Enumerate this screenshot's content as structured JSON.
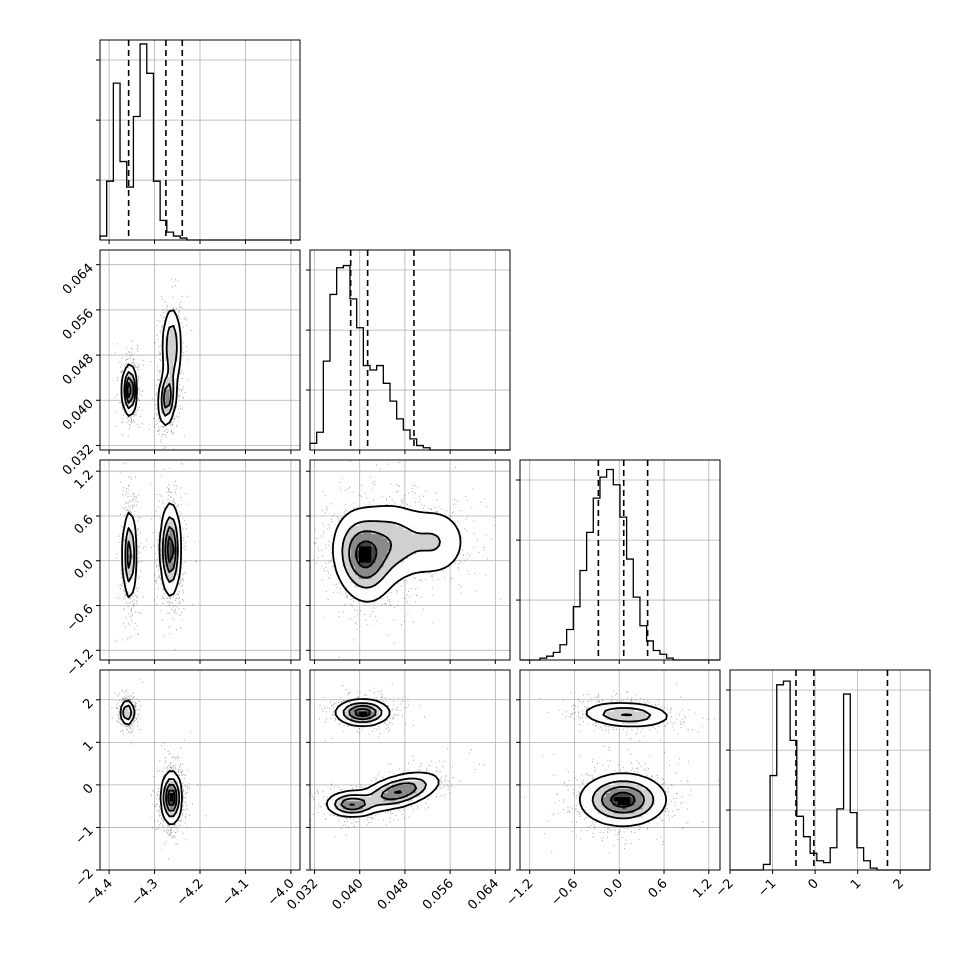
{
  "figure": {
    "type": "corner-plot",
    "panel_count": 10
  },
  "style": {
    "line_color": "#000000",
    "grid_color": "#b0b0b0",
    "scatter_color": "#000000",
    "background": "#ffffff"
  },
  "chart_data": {
    "type": "corner",
    "parameters": [
      {
        "ticks": [
          -4.4,
          -4.3,
          -4.2,
          -4.1,
          -4.0
        ],
        "tick_labels": [
          "−4.4",
          "−4.3",
          "−4.2",
          "−4.1",
          "−4.0"
        ],
        "range": [
          -4.42,
          -3.98
        ],
        "quantiles": [
          -4.357,
          -4.275,
          -4.239
        ]
      },
      {
        "ticks": [
          0.032,
          0.04,
          0.048,
          0.056,
          0.064
        ],
        "tick_labels": [
          "0.032",
          "0.040",
          "0.048",
          "0.056",
          "0.064"
        ],
        "range": [
          0.0312,
          0.0666
        ],
        "quantiles": [
          0.0384,
          0.0414,
          0.0496
        ]
      },
      {
        "ticks": [
          -1.2,
          -0.6,
          0.0,
          0.6,
          1.2
        ],
        "tick_labels": [
          "−1.2",
          "−0.6",
          "0.0",
          "0.6",
          "1.2"
        ],
        "range": [
          -1.33,
          1.35
        ],
        "quantiles": [
          -0.28,
          0.06,
          0.38
        ]
      },
      {
        "ticks": [
          -2,
          -1,
          0,
          1,
          2
        ],
        "tick_labels": [
          "−2",
          "−1",
          "0",
          "1",
          "2"
        ],
        "range": [
          -2.0,
          2.7
        ],
        "quantiles": [
          -0.45,
          -0.03,
          1.7
        ]
      }
    ],
    "histograms": [
      {
        "param": 0,
        "bin_edges_start": -4.42,
        "bin_width": 0.0147,
        "counts": [
          2,
          30,
          80,
          40,
          27,
          63,
          100,
          85,
          30,
          10,
          4,
          2,
          1,
          0,
          0,
          0,
          0,
          0,
          0,
          0,
          0,
          0,
          0,
          0,
          0,
          0,
          0,
          0,
          0,
          0
        ],
        "ylim": [
          0,
          102
        ]
      },
      {
        "param": 1,
        "bin_edges_start": 0.0312,
        "bin_width": 0.00118,
        "counts": [
          3,
          8,
          40,
          70,
          82,
          83,
          68,
          55,
          38,
          36,
          38,
          30,
          22,
          14,
          9,
          5,
          2,
          1,
          0,
          0,
          0,
          0,
          0,
          0,
          0,
          0,
          0,
          0,
          0,
          0
        ],
        "ylim": [
          0,
          90
        ]
      },
      {
        "param": 2,
        "bin_edges_start": -1.33,
        "bin_width": 0.0893,
        "counts": [
          0,
          0,
          0,
          1,
          2,
          4,
          8,
          16,
          28,
          47,
          67,
          85,
          96,
          100,
          92,
          75,
          53,
          33,
          18,
          10,
          5,
          3,
          1,
          0,
          0,
          0,
          0,
          0,
          0,
          0
        ],
        "ylim": [
          0,
          105
        ]
      },
      {
        "param": 3,
        "bin_edges_start": -2.0,
        "bin_width": 0.157,
        "counts": [
          0,
          0,
          0,
          0,
          0,
          3,
          51,
          100,
          102,
          70,
          29,
          18,
          9,
          5,
          4,
          12,
          33,
          95,
          31,
          12,
          5,
          1,
          0,
          0,
          0,
          0,
          0,
          0,
          0,
          0
        ],
        "ylim": [
          0,
          108
        ]
      }
    ],
    "pairs": [
      {
        "x_param": 0,
        "y_param": 1,
        "modes": [
          {
            "cx": -4.355,
            "cy": 0.0418,
            "sx": 0.0077,
            "sy": 0.0022,
            "rho": 0.0,
            "weight": 0.42
          },
          {
            "cx": -4.272,
            "cy": 0.0405,
            "sx": 0.0095,
            "sy": 0.0025,
            "rho": 0.2,
            "weight": 0.33
          },
          {
            "cx": -4.262,
            "cy": 0.0495,
            "sx": 0.0105,
            "sy": 0.0036,
            "rho": 0.0,
            "weight": 0.25
          }
        ]
      },
      {
        "x_param": 0,
        "y_param": 2,
        "modes": [
          {
            "cx": -4.355,
            "cy": 0.08,
            "sx": 0.0077,
            "sy": 0.3,
            "rho": 0.0,
            "weight": 0.42
          },
          {
            "cx": -4.265,
            "cy": 0.15,
            "sx": 0.011,
            "sy": 0.3,
            "rho": 0.0,
            "weight": 0.58
          }
        ]
      },
      {
        "x_param": 1,
        "y_param": 2,
        "modes": [
          {
            "cx": 0.0405,
            "cy": 0.05,
            "sx": 0.0026,
            "sy": 0.3,
            "rho": -0.15,
            "weight": 0.5
          },
          {
            "cx": 0.0455,
            "cy": 0.25,
            "sx": 0.0035,
            "sy": 0.28,
            "rho": 0.0,
            "weight": 0.3
          },
          {
            "cx": 0.0535,
            "cy": 0.25,
            "sx": 0.003,
            "sy": 0.25,
            "rho": 0.0,
            "weight": 0.2
          }
        ]
      },
      {
        "x_param": 0,
        "y_param": 3,
        "modes": [
          {
            "cx": -4.36,
            "cy": 1.7,
            "sx": 0.0077,
            "sy": 0.15,
            "rho": 0.0,
            "weight": 0.38
          },
          {
            "cx": -4.263,
            "cy": -0.3,
            "sx": 0.011,
            "sy": 0.3,
            "rho": 0.0,
            "weight": 0.62
          }
        ]
      },
      {
        "x_param": 1,
        "y_param": 3,
        "modes": [
          {
            "cx": 0.0405,
            "cy": 1.7,
            "sx": 0.0023,
            "sy": 0.15,
            "rho": 0.0,
            "weight": 0.38
          },
          {
            "cx": 0.0385,
            "cy": -0.45,
            "sx": 0.0022,
            "sy": 0.15,
            "rho": 0.0,
            "weight": 0.3
          },
          {
            "cx": 0.047,
            "cy": -0.15,
            "sx": 0.0035,
            "sy": 0.22,
            "rho": 0.5,
            "weight": 0.32
          }
        ]
      },
      {
        "x_param": 2,
        "y_param": 3,
        "modes": [
          {
            "cx": 0.1,
            "cy": 1.65,
            "sx": 0.3,
            "sy": 0.15,
            "rho": -0.15,
            "weight": 0.38
          },
          {
            "cx": 0.05,
            "cy": -0.35,
            "sx": 0.28,
            "sy": 0.3,
            "rho": 0.0,
            "weight": 0.62
          }
        ]
      }
    ],
    "contour_levels": [
      0.12,
      0.35,
      0.6,
      0.85
    ],
    "grid": true
  }
}
